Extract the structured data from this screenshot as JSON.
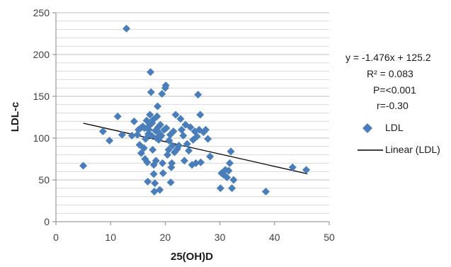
{
  "chart_data": {
    "type": "scatter",
    "title": "",
    "xlabel": "25(OH)D",
    "ylabel": "LDL-c",
    "xlim": [
      0,
      50
    ],
    "ylim": [
      0,
      250
    ],
    "xticks": [
      "0",
      "10",
      "20",
      "30",
      "40",
      "50"
    ],
    "yticks": [
      "0",
      "50",
      "100",
      "150",
      "200",
      "250"
    ],
    "grid": "horizontal",
    "legend_position": "right",
    "marker_color": "#4a7ebb",
    "trendline_color": "#000000",
    "series": [
      {
        "name": "LDL",
        "points": [
          [
            5,
            67
          ],
          [
            8.6,
            108
          ],
          [
            9.8,
            97
          ],
          [
            11.3,
            126
          ],
          [
            12.1,
            104
          ],
          [
            12.9,
            231
          ],
          [
            13.9,
            103
          ],
          [
            14.3,
            120
          ],
          [
            14.9,
            104
          ],
          [
            15.1,
            110
          ],
          [
            15.3,
            92
          ],
          [
            15.5,
            112
          ],
          [
            15.6,
            82
          ],
          [
            15.9,
            114
          ],
          [
            16.1,
            88
          ],
          [
            16.2,
            112
          ],
          [
            16.3,
            75
          ],
          [
            16.4,
            99
          ],
          [
            16.6,
            121
          ],
          [
            16.7,
            71
          ],
          [
            16.8,
            48
          ],
          [
            16.9,
            105
          ],
          [
            17.0,
            110
          ],
          [
            17.1,
            115
          ],
          [
            17.2,
            128
          ],
          [
            17.3,
            179
          ],
          [
            17.4,
            155
          ],
          [
            17.5,
            103
          ],
          [
            17.6,
            118
          ],
          [
            17.7,
            86
          ],
          [
            17.8,
            122
          ],
          [
            17.9,
            57
          ],
          [
            17.9,
            68
          ],
          [
            18.0,
            36
          ],
          [
            18.1,
            46
          ],
          [
            18.2,
            109
          ],
          [
            18.3,
            73
          ],
          [
            18.4,
            100
          ],
          [
            18.5,
            126
          ],
          [
            18.6,
            138
          ],
          [
            18.7,
            113
          ],
          [
            18.8,
            98
          ],
          [
            18.9,
            106
          ],
          [
            19.0,
            38
          ],
          [
            19.1,
            116
          ],
          [
            19.3,
            103
          ],
          [
            19.4,
            153
          ],
          [
            19.5,
            70
          ],
          [
            19.6,
            58
          ],
          [
            19.8,
            110
          ],
          [
            20.0,
            160
          ],
          [
            20.1,
            163
          ],
          [
            20.2,
            112
          ],
          [
            20.4,
            80
          ],
          [
            20.6,
            86
          ],
          [
            20.7,
            97
          ],
          [
            20.9,
            104
          ],
          [
            21.0,
            47
          ],
          [
            21.1,
            65
          ],
          [
            21.2,
            70
          ],
          [
            21.3,
            91
          ],
          [
            21.5,
            108
          ],
          [
            21.7,
            83
          ],
          [
            21.9,
            128
          ],
          [
            22.2,
            87
          ],
          [
            22.5,
            91
          ],
          [
            22.8,
            123
          ],
          [
            23.0,
            110
          ],
          [
            23.3,
            103
          ],
          [
            23.5,
            73
          ],
          [
            23.7,
            116
          ],
          [
            24.0,
            93
          ],
          [
            24.3,
            85
          ],
          [
            24.6,
            113
          ],
          [
            24.9,
            68
          ],
          [
            25.1,
            98
          ],
          [
            25.4,
            108
          ],
          [
            25.6,
            70
          ],
          [
            25.8,
            102
          ],
          [
            26.0,
            152
          ],
          [
            26.2,
            110
          ],
          [
            26.4,
            128
          ],
          [
            26.5,
            71
          ],
          [
            27.0,
            107
          ],
          [
            27.4,
            110
          ],
          [
            27.8,
            99
          ],
          [
            28.2,
            78
          ],
          [
            30.1,
            40
          ],
          [
            30.3,
            58
          ],
          [
            30.7,
            56
          ],
          [
            31.0,
            62
          ],
          [
            31.3,
            53
          ],
          [
            31.6,
            61
          ],
          [
            31.8,
            70
          ],
          [
            32.0,
            84
          ],
          [
            32.2,
            40
          ],
          [
            32.5,
            50
          ],
          [
            38.4,
            36
          ],
          [
            43.3,
            65
          ],
          [
            45.8,
            62
          ]
        ]
      }
    ],
    "trendline": {
      "name": "Linear (LDL)",
      "slope": -1.476,
      "intercept": 125.2,
      "x_range": [
        5,
        46
      ]
    }
  },
  "annotations": {
    "equation": "y = -1.476x + 125.2",
    "r_squared": "R² = 0.083",
    "p_value": "P=<0.001",
    "r_value": "r=-0.30"
  },
  "legend": {
    "series_label": "LDL",
    "trend_label": "Linear (LDL)"
  }
}
